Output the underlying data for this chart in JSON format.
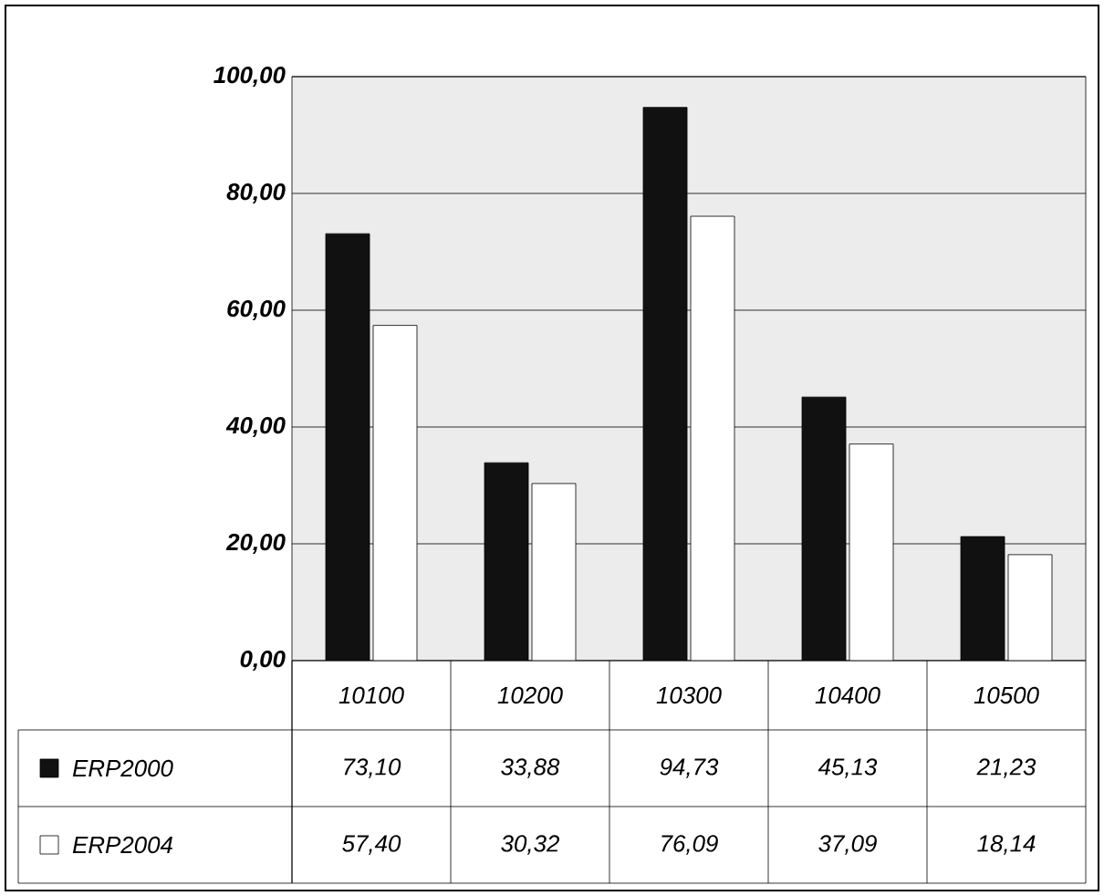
{
  "chart_data": {
    "type": "bar",
    "categories": [
      "10100",
      "10200",
      "10300",
      "10400",
      "10500"
    ],
    "series": [
      {
        "name": "ERP2000",
        "color": "#111111",
        "values": [
          73.1,
          33.88,
          94.73,
          45.13,
          21.23
        ],
        "value_labels": [
          "73,10",
          "33,88",
          "94,73",
          "45,13",
          "21,23"
        ]
      },
      {
        "name": "ERP2004",
        "color": "#ffffff",
        "values": [
          57.4,
          30.32,
          76.09,
          37.09,
          18.14
        ],
        "value_labels": [
          "57,40",
          "30,32",
          "76,09",
          "37,09",
          "18,14"
        ]
      }
    ],
    "ylim": [
      0,
      100
    ],
    "yticks": [
      {
        "value": 0,
        "label": "0,00"
      },
      {
        "value": 20,
        "label": "20,00"
      },
      {
        "value": 40,
        "label": "40,00"
      },
      {
        "value": 60,
        "label": "60,00"
      },
      {
        "value": 80,
        "label": "80,00"
      },
      {
        "value": 100,
        "label": "100,00"
      }
    ],
    "grid": "y",
    "legend": "bottom left"
  }
}
